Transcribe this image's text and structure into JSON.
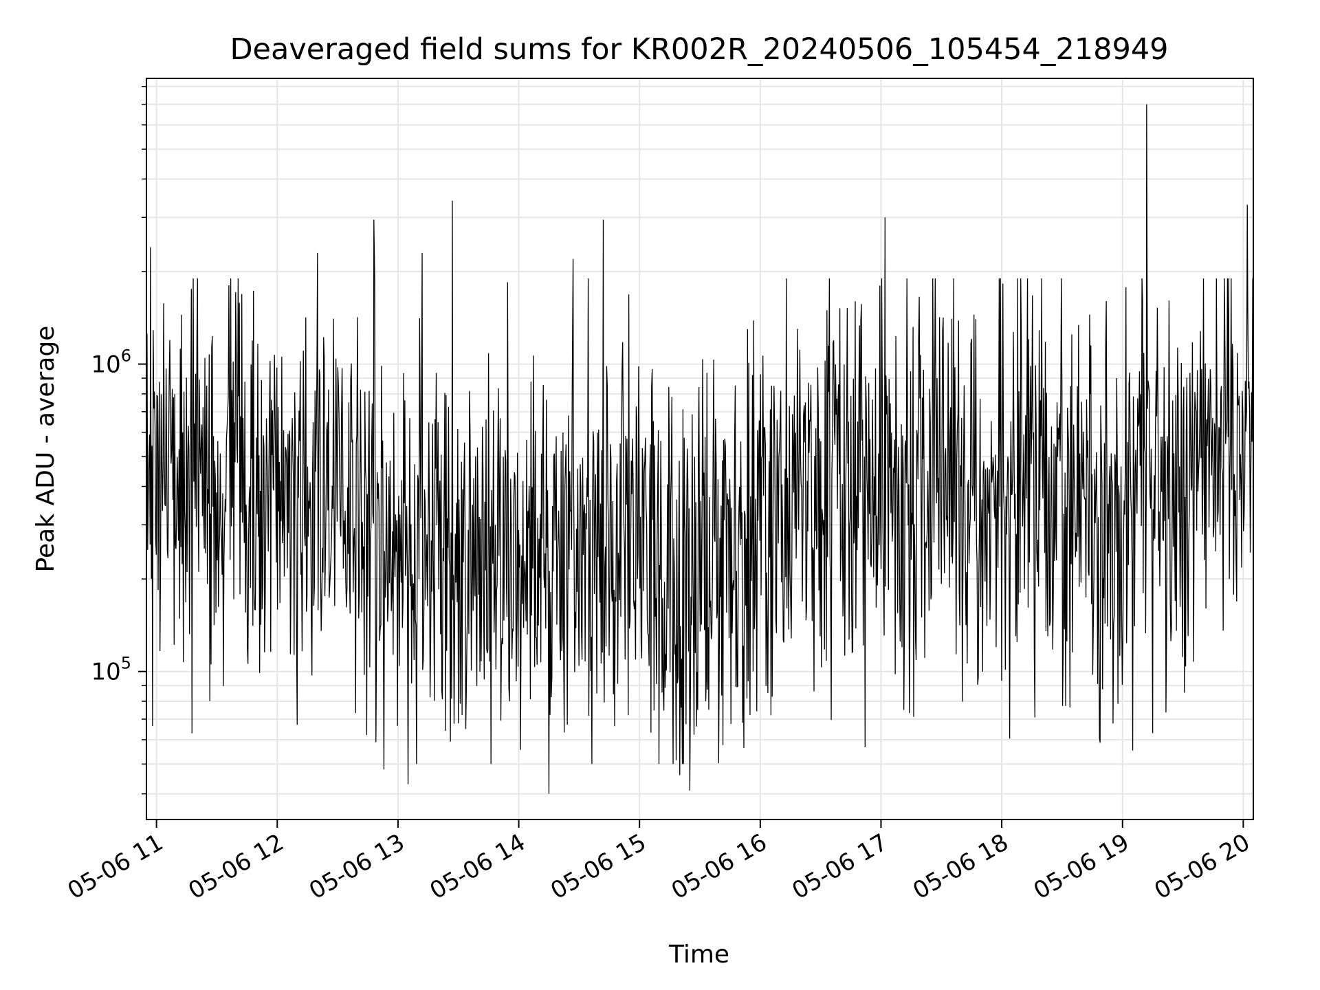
{
  "chart_data": {
    "type": "line",
    "title": "Deaveraged field sums for KR002R_20240506_105454_218949",
    "xlabel": "Time",
    "ylabel": "Peak ADU - average",
    "y_scale": "log",
    "x_range": [
      "2024-05-06 10:55",
      "2024-05-06 20:05"
    ],
    "ylim": [
      33000,
      8500000
    ],
    "grid": true,
    "x_tick_labels": [
      "05-06 11",
      "05-06 12",
      "05-06 13",
      "05-06 14",
      "05-06 15",
      "05-06 16",
      "05-06 17",
      "05-06 18",
      "05-06 19",
      "05-06 20"
    ],
    "y_tick_labels": [
      {
        "base": "10",
        "exponent": "5",
        "value": 100000
      },
      {
        "base": "10",
        "exponent": "6",
        "value": 1000000
      }
    ],
    "line_color": "#000000",
    "grid_color": "#e6e6e6",
    "series": [
      {
        "x": [
          "2024-05-06 10:55",
          "2024-05-06 11:30",
          "2024-05-06 12:00",
          "2024-05-06 12:30",
          "2024-05-06 13:00",
          "2024-05-06 13:30",
          "2024-05-06 14:00",
          "2024-05-06 14:30",
          "2024-05-06 15:00",
          "2024-05-06 15:30",
          "2024-05-06 16:00",
          "2024-05-06 16:30",
          "2024-05-06 17:00",
          "2024-05-06 17:30",
          "2024-05-06 18:00",
          "2024-05-06 18:30",
          "2024-05-06 19:00",
          "2024-05-06 19:30",
          "2024-05-06 20:00",
          "2024-05-06 20:05"
        ],
        "y": [
          500000,
          420000,
          400000,
          380000,
          260000,
          250000,
          220000,
          240000,
          300000,
          220000,
          330000,
          420000,
          380000,
          360000,
          360000,
          380000,
          360000,
          400000,
          650000,
          900000
        ],
        "median": [
          480000,
          430000,
          400000,
          380000,
          260000,
          250000,
          220000,
          240000,
          300000,
          220000,
          330000,
          430000,
          380000,
          360000,
          360000,
          380000,
          360000,
          410000,
          650000,
          900000
        ],
        "spikes": [
          {
            "x": "2024-05-06 10:57",
            "y": 2400000
          },
          {
            "x": "2024-05-06 12:48",
            "y": 2950000
          },
          {
            "x": "2024-05-06 13:27",
            "y": 3400000
          },
          {
            "x": "2024-05-06 14:27",
            "y": 2200000
          },
          {
            "x": "2024-05-06 14:42",
            "y": 2950000
          },
          {
            "x": "2024-05-06 17:02",
            "y": 3000000
          },
          {
            "x": "2024-05-06 19:12",
            "y": 7000000
          },
          {
            "x": "2024-05-06 20:02",
            "y": 3300000
          },
          {
            "x": "2024-05-06 13:12",
            "y": 2300000
          },
          {
            "x": "2024-05-06 12:20",
            "y": 2300000
          }
        ],
        "dips": [
          {
            "x": "2024-05-06 13:05",
            "y": 43000
          },
          {
            "x": "2024-05-06 14:15",
            "y": 40000
          },
          {
            "x": "2024-05-06 15:25",
            "y": 41000
          },
          {
            "x": "2024-05-06 19:15",
            "y": 63000
          },
          {
            "x": "2024-05-06 12:53",
            "y": 48000
          },
          {
            "x": "2024-05-06 15:20",
            "y": 46000
          }
        ]
      }
    ]
  }
}
